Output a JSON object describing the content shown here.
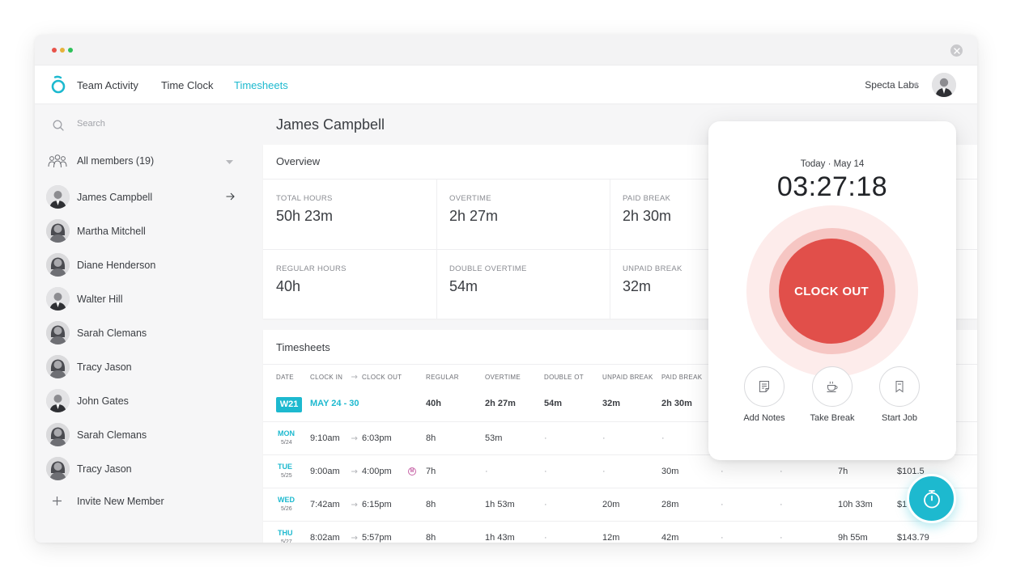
{
  "nav": {
    "tabs": [
      {
        "label": "Team Activity"
      },
      {
        "label": "Time Clock"
      },
      {
        "label": "Timesheets"
      }
    ],
    "active_tab": "Timesheets",
    "organization": "Specta Labs"
  },
  "sidebar": {
    "search_placeholder": "Search",
    "all_members_label": "All members (19)",
    "members": [
      {
        "name": "James Campbell",
        "gender": "m"
      },
      {
        "name": "Martha Mitchell",
        "gender": "f"
      },
      {
        "name": "Diane Henderson",
        "gender": "f"
      },
      {
        "name": "Walter Hill",
        "gender": "m"
      },
      {
        "name": "Sarah Clemans",
        "gender": "f"
      },
      {
        "name": "Tracy Jason",
        "gender": "f"
      },
      {
        "name": "John Gates",
        "gender": "m"
      },
      {
        "name": "Sarah Clemans",
        "gender": "f"
      },
      {
        "name": "Tracy Jason",
        "gender": "f"
      }
    ],
    "invite_label": "Invite New Member"
  },
  "main": {
    "title": "James Campbell"
  },
  "overview": {
    "title": "Overview",
    "stats": [
      {
        "label": "TOTAL HOURS",
        "value": "50h 23m"
      },
      {
        "label": "OVERTIME",
        "value": "2h 27m"
      },
      {
        "label": "PAID BREAK",
        "value": "2h 30m"
      },
      {
        "label": "REGULAR HOURS",
        "value": "40h"
      },
      {
        "label": "DOUBLE OVERTIME",
        "value": "54m"
      },
      {
        "label": "UNPAID BREAK",
        "value": "32m"
      }
    ]
  },
  "timesheets": {
    "title": "Timesheets",
    "columns": [
      "DATE",
      "CLOCK IN",
      "CLOCK OUT",
      "REGULAR",
      "OVERTIME",
      "DOUBLE OT",
      "UNPAID BREAK",
      "PAID BREAK"
    ],
    "week": {
      "badge": "W21",
      "range": "MAY 24 - 30",
      "regular": "40h",
      "overtime": "2h 27m",
      "double_ot": "54m",
      "unpaid_break": "32m",
      "paid_break": "2h 30m"
    },
    "rows": [
      {
        "day": "MON",
        "date": "5/24",
        "clock_in": "9:10am",
        "clock_out": "6:03pm",
        "marker": "",
        "regular": "8h",
        "overtime": "53m",
        "double_ot": "·",
        "unpaid_break": "·",
        "paid_break": "·",
        "c8": "",
        "c9": "",
        "total": "",
        "pay": ""
      },
      {
        "day": "TUE",
        "date": "5/25",
        "clock_in": "9:00am",
        "clock_out": "4:00pm",
        "marker": "M",
        "regular": "7h",
        "overtime": "·",
        "double_ot": "·",
        "unpaid_break": "·",
        "paid_break": "30m",
        "c8": "·",
        "c9": "·",
        "total": "7h",
        "pay": "$101.5"
      },
      {
        "day": "WED",
        "date": "5/26",
        "clock_in": "7:42am",
        "clock_out": "6:15pm",
        "marker": "",
        "regular": "8h",
        "overtime": "1h 53m",
        "double_ot": "·",
        "unpaid_break": "20m",
        "paid_break": "28m",
        "c8": "·",
        "c9": "·",
        "total": "10h 33m",
        "pay": "$1"
      },
      {
        "day": "THU",
        "date": "5/27",
        "clock_in": "8:02am",
        "clock_out": "5:57pm",
        "marker": "",
        "regular": "8h",
        "overtime": "1h 43m",
        "double_ot": "·",
        "unpaid_break": "12m",
        "paid_break": "42m",
        "c8": "·",
        "c9": "·",
        "total": "9h 55m",
        "pay": "$143.79"
      }
    ]
  },
  "clock_panel": {
    "today_label": "Today · May 14",
    "timer": "03:27:18",
    "clock_out_label": "CLOCK OUT",
    "actions": [
      {
        "label": "Add Notes",
        "icon": "notes-icon"
      },
      {
        "label": "Take Break",
        "icon": "coffee-icon"
      },
      {
        "label": "Start Job",
        "icon": "bookmark-icon"
      }
    ]
  },
  "colors": {
    "accent": "#1db9cf",
    "clock_out": "#e14f4a",
    "text": "#3a3d42"
  }
}
